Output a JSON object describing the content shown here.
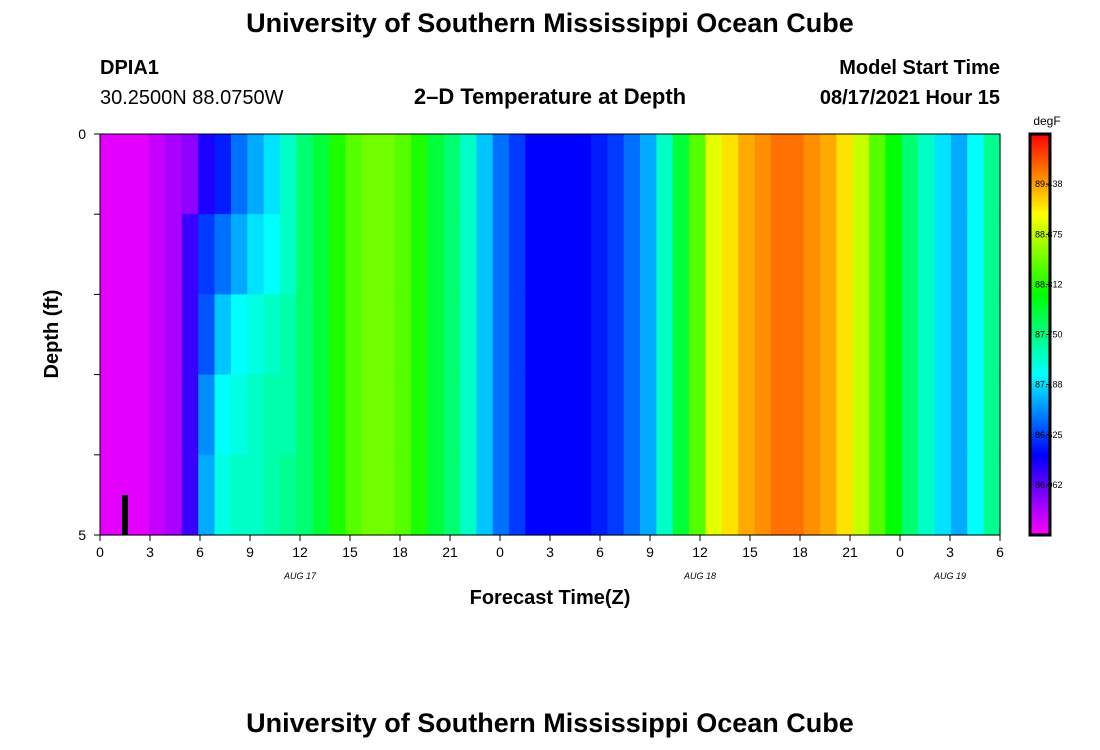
{
  "header": {
    "title": "University of Southern Mississippi Ocean Cube",
    "station_id": "DPIA1",
    "station_coords": "30.2500N  88.0750W",
    "plot_title": "2–D Temperature at Depth",
    "model_start_label": "Model Start Time",
    "model_start_value": "08/17/2021 Hour 15",
    "footer_title": "University of Southern Mississippi Ocean Cube"
  },
  "chart_data": {
    "type": "heatmap",
    "title": "2–D Temperature at Depth",
    "xlabel": "Forecast Time(Z)",
    "ylabel": "Depth (ft)",
    "x_tick_labels": [
      "0",
      "3",
      "6",
      "9",
      "12",
      "15",
      "18",
      "21",
      "0",
      "3",
      "6",
      "9",
      "12",
      "15",
      "18",
      "21",
      "0",
      "3",
      "6"
    ],
    "date_labels": [
      "AUG 17",
      "AUG 18",
      "AUG 19"
    ],
    "y_tick_labels": [
      "0",
      "5"
    ],
    "ylim": [
      0,
      5
    ],
    "colorbar": {
      "unit": "degF",
      "tick_labels": [
        "89.438",
        "88.875",
        "88.312",
        "87.750",
        "87.188",
        "86.625",
        "86.062"
      ],
      "min": 85.5,
      "max": 90.0
    },
    "x_hours": [
      0,
      1,
      2,
      3,
      4,
      5,
      6,
      7,
      8,
      9,
      10,
      11,
      12,
      13,
      14,
      15,
      16,
      17,
      18,
      19,
      20,
      21,
      22,
      23,
      24,
      25,
      26,
      27,
      28,
      29,
      30,
      31,
      32,
      33,
      34,
      35,
      36,
      37,
      38,
      39,
      40,
      41,
      42,
      43,
      44,
      45,
      46,
      47,
      48,
      49,
      50,
      51,
      52,
      53,
      54
    ],
    "depth_rows_ft": [
      0,
      1,
      2,
      3,
      4
    ],
    "values": [
      [
        85.6,
        85.6,
        85.6,
        85.7,
        85.8,
        85.9,
        86.3,
        86.5,
        86.8,
        87.0,
        87.2,
        87.5,
        87.8,
        88.0,
        88.3,
        88.5,
        88.6,
        88.6,
        88.5,
        88.3,
        88.0,
        87.8,
        87.5,
        87.1,
        86.8,
        86.6,
        86.4,
        86.4,
        86.4,
        86.4,
        86.5,
        86.6,
        86.8,
        87.0,
        87.5,
        88.0,
        88.5,
        89.0,
        89.2,
        89.4,
        89.5,
        89.6,
        89.6,
        89.5,
        89.4,
        89.2,
        88.9,
        88.5,
        88.2,
        87.8,
        87.5,
        87.2,
        87.0,
        87.3,
        87.7
      ],
      [
        85.6,
        85.6,
        85.6,
        85.7,
        85.8,
        86.2,
        86.6,
        86.8,
        87.0,
        87.2,
        87.3,
        87.5,
        87.8,
        88.0,
        88.3,
        88.5,
        88.6,
        88.6,
        88.5,
        88.3,
        88.0,
        87.8,
        87.5,
        87.1,
        86.8,
        86.6,
        86.4,
        86.4,
        86.4,
        86.4,
        86.5,
        86.6,
        86.8,
        87.0,
        87.5,
        88.0,
        88.5,
        89.0,
        89.2,
        89.4,
        89.5,
        89.6,
        89.6,
        89.5,
        89.4,
        89.2,
        88.9,
        88.5,
        88.2,
        87.8,
        87.5,
        87.2,
        87.0,
        87.3,
        87.7
      ],
      [
        85.6,
        85.6,
        85.6,
        85.7,
        85.8,
        86.2,
        86.7,
        87.1,
        87.3,
        87.4,
        87.5,
        87.6,
        87.8,
        88.0,
        88.3,
        88.5,
        88.6,
        88.6,
        88.5,
        88.3,
        88.0,
        87.8,
        87.5,
        87.1,
        86.8,
        86.6,
        86.4,
        86.4,
        86.4,
        86.4,
        86.5,
        86.6,
        86.8,
        87.0,
        87.5,
        88.0,
        88.5,
        89.0,
        89.2,
        89.4,
        89.5,
        89.6,
        89.6,
        89.5,
        89.4,
        89.2,
        88.9,
        88.5,
        88.2,
        87.8,
        87.5,
        87.2,
        87.0,
        87.3,
        87.7
      ],
      [
        85.6,
        85.6,
        85.6,
        85.7,
        85.8,
        86.2,
        86.9,
        87.3,
        87.4,
        87.5,
        87.6,
        87.6,
        87.8,
        88.0,
        88.3,
        88.5,
        88.6,
        88.6,
        88.5,
        88.3,
        88.0,
        87.8,
        87.5,
        87.1,
        86.8,
        86.6,
        86.4,
        86.4,
        86.4,
        86.4,
        86.5,
        86.6,
        86.8,
        87.0,
        87.5,
        88.0,
        88.5,
        89.0,
        89.2,
        89.4,
        89.5,
        89.6,
        89.6,
        89.5,
        89.4,
        89.2,
        88.9,
        88.5,
        88.2,
        87.8,
        87.5,
        87.2,
        87.0,
        87.3,
        87.7
      ],
      [
        85.6,
        85.6,
        85.6,
        85.7,
        85.8,
        86.2,
        87.0,
        87.4,
        87.5,
        87.5,
        87.6,
        87.7,
        87.8,
        88.0,
        88.3,
        88.5,
        88.6,
        88.6,
        88.5,
        88.3,
        88.0,
        87.8,
        87.5,
        87.1,
        86.8,
        86.6,
        86.4,
        86.4,
        86.4,
        86.4,
        86.5,
        86.6,
        86.8,
        87.0,
        87.5,
        88.0,
        88.5,
        89.0,
        89.2,
        89.4,
        89.5,
        89.6,
        89.6,
        89.5,
        89.4,
        89.2,
        88.9,
        88.5,
        88.2,
        87.8,
        87.5,
        87.2,
        87.0,
        87.3,
        87.7
      ]
    ],
    "current_time_marker_hour": 1.5
  }
}
